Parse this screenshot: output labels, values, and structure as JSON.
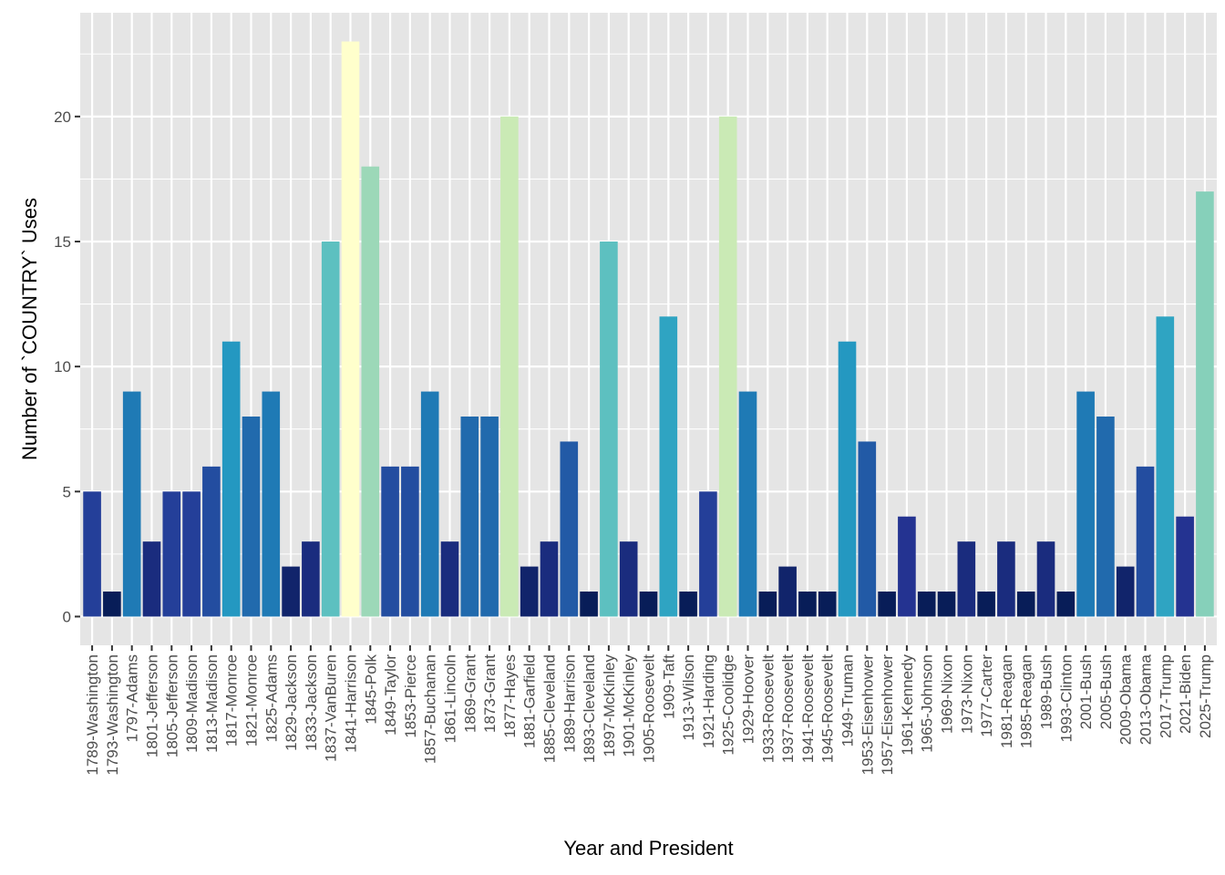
{
  "chart_data": {
    "type": "bar",
    "title": "",
    "xlabel": "Year and President",
    "ylabel": "Number of `COUNTRY` Uses",
    "ylim": [
      -1.15,
      24.15
    ],
    "yticks": [
      0,
      5,
      10,
      15,
      20
    ],
    "grid": true,
    "legend": "none",
    "categories": [
      "1789-Washington",
      "1793-Washington",
      "1797-Adams",
      "1801-Jefferson",
      "1805-Jefferson",
      "1809-Madison",
      "1813-Madison",
      "1817-Monroe",
      "1821-Monroe",
      "1825-Adams",
      "1829-Jackson",
      "1833-Jackson",
      "1837-VanBuren",
      "1841-Harrison",
      "1845-Polk",
      "1849-Taylor",
      "1853-Pierce",
      "1857-Buchanan",
      "1861-Lincoln",
      "1869-Grant",
      "1873-Grant",
      "1877-Hayes",
      "1881-Garfield",
      "1885-Cleveland",
      "1889-Harrison",
      "1893-Cleveland",
      "1897-McKinley",
      "1901-McKinley",
      "1905-Roosevelt",
      "1909-Taft",
      "1913-Wilson",
      "1921-Harding",
      "1925-Coolidge",
      "1929-Hoover",
      "1933-Roosevelt",
      "1937-Roosevelt",
      "1941-Roosevelt",
      "1945-Roosevelt",
      "1949-Truman",
      "1953-Eisenhower",
      "1957-Eisenhower",
      "1961-Kennedy",
      "1965-Johnson",
      "1969-Nixon",
      "1973-Nixon",
      "1977-Carter",
      "1981-Reagan",
      "1985-Reagan",
      "1989-Bush",
      "1993-Clinton",
      "2001-Bush",
      "2005-Bush",
      "2009-Obama",
      "2013-Obama",
      "2017-Trump",
      "2021-Biden",
      "2025-Trump"
    ],
    "values": [
      5,
      1,
      9,
      3,
      5,
      5,
      6,
      11,
      8,
      9,
      2,
      3,
      15,
      23,
      18,
      6,
      6,
      9,
      3,
      8,
      8,
      20,
      2,
      3,
      7,
      1,
      15,
      3,
      1,
      12,
      1,
      5,
      20,
      9,
      1,
      2,
      1,
      1,
      11,
      7,
      1,
      4,
      1,
      1,
      3,
      1,
      3,
      1,
      3,
      1,
      9,
      8,
      2,
      6,
      12,
      4,
      17
    ],
    "color_scale": {
      "name": "YlGnBu",
      "stops": [
        "#081d58",
        "#253494",
        "#225ea8",
        "#1d91c0",
        "#41b6c4",
        "#7fcdbb",
        "#c7e9b4",
        "#ffffcc"
      ]
    },
    "panel_background": "#e5e5e5",
    "gridline_color": "#ffffff"
  }
}
